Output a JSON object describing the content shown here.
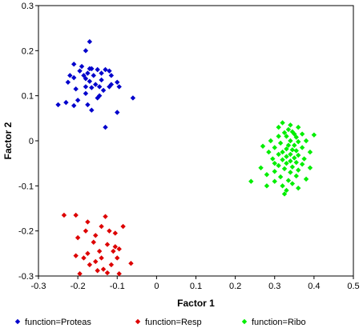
{
  "chart_data": {
    "type": "scatter",
    "xlabel": "Factor 1",
    "ylabel": "Factor 2",
    "xlim": [
      -0.3,
      0.5
    ],
    "ylim": [
      -0.3,
      0.3
    ],
    "x_ticks": [
      -0.3,
      -0.2,
      -0.1,
      0,
      0.1,
      0.2,
      0.3,
      0.4,
      0.5
    ],
    "y_ticks": [
      -0.3,
      -0.2,
      -0.1,
      0,
      0.1,
      0.2,
      0.3
    ],
    "x_tick_labels": [
      "-0.3",
      "-0.2",
      "-0.1",
      "0",
      "0.1",
      "0.2",
      "0.3",
      "0.4",
      "0.5"
    ],
    "y_tick_labels": [
      "-0.3",
      "-0.2",
      "-0.1",
      "0",
      "0.1",
      "0.2",
      "0.3"
    ],
    "grid": false,
    "legend_position": "bottom",
    "marker": "diamond",
    "series": [
      {
        "name": "function=Proteas",
        "color": "#0000cc",
        "points": [
          [
            -0.17,
            0.22
          ],
          [
            -0.18,
            0.2
          ],
          [
            -0.21,
            0.17
          ],
          [
            -0.19,
            0.165
          ],
          [
            -0.17,
            0.16
          ],
          [
            -0.165,
            0.16
          ],
          [
            -0.15,
            0.158
          ],
          [
            -0.13,
            0.158
          ],
          [
            -0.12,
            0.155
          ],
          [
            -0.195,
            0.155
          ],
          [
            -0.175,
            0.15
          ],
          [
            -0.14,
            0.15
          ],
          [
            -0.22,
            0.145
          ],
          [
            -0.185,
            0.145
          ],
          [
            -0.16,
            0.145
          ],
          [
            -0.115,
            0.145
          ],
          [
            -0.21,
            0.14
          ],
          [
            -0.18,
            0.138
          ],
          [
            -0.14,
            0.135
          ],
          [
            -0.17,
            0.132
          ],
          [
            -0.225,
            0.13
          ],
          [
            -0.1,
            0.13
          ],
          [
            -0.155,
            0.125
          ],
          [
            -0.115,
            0.125
          ],
          [
            -0.145,
            0.12
          ],
          [
            -0.18,
            0.12
          ],
          [
            -0.165,
            0.118
          ],
          [
            -0.12,
            0.12
          ],
          [
            -0.095,
            0.12
          ],
          [
            -0.205,
            0.115
          ],
          [
            -0.135,
            0.112
          ],
          [
            -0.18,
            0.105
          ],
          [
            -0.145,
            0.1
          ],
          [
            -0.15,
            0.095
          ],
          [
            -0.2,
            0.09
          ],
          [
            -0.06,
            0.095
          ],
          [
            -0.23,
            0.085
          ],
          [
            -0.175,
            0.08
          ],
          [
            -0.25,
            0.08
          ],
          [
            -0.21,
            0.078
          ],
          [
            -0.165,
            0.068
          ],
          [
            -0.1,
            0.063
          ],
          [
            -0.13,
            0.03
          ]
        ]
      },
      {
        "name": "function=Resp",
        "color": "#dd0000",
        "points": [
          [
            -0.235,
            -0.165
          ],
          [
            -0.205,
            -0.165
          ],
          [
            -0.13,
            -0.168
          ],
          [
            -0.175,
            -0.18
          ],
          [
            -0.14,
            -0.19
          ],
          [
            -0.085,
            -0.19
          ],
          [
            -0.18,
            -0.2
          ],
          [
            -0.12,
            -0.2
          ],
          [
            -0.105,
            -0.205
          ],
          [
            -0.2,
            -0.215
          ],
          [
            -0.155,
            -0.21
          ],
          [
            -0.16,
            -0.225
          ],
          [
            -0.125,
            -0.23
          ],
          [
            -0.105,
            -0.235
          ],
          [
            -0.095,
            -0.24
          ],
          [
            -0.145,
            -0.245
          ],
          [
            -0.175,
            -0.25
          ],
          [
            -0.205,
            -0.255
          ],
          [
            -0.11,
            -0.245
          ],
          [
            -0.185,
            -0.26
          ],
          [
            -0.14,
            -0.26
          ],
          [
            -0.1,
            -0.26
          ],
          [
            -0.155,
            -0.268
          ],
          [
            -0.115,
            -0.275
          ],
          [
            -0.17,
            -0.275
          ],
          [
            -0.135,
            -0.285
          ],
          [
            -0.15,
            -0.288
          ],
          [
            -0.125,
            -0.293
          ],
          [
            -0.065,
            -0.272
          ],
          [
            -0.195,
            -0.295
          ],
          [
            -0.095,
            -0.295
          ]
        ]
      },
      {
        "name": "function=Ribo",
        "color": "#00ee00",
        "points": [
          [
            0.32,
            0.04
          ],
          [
            0.34,
            0.035
          ],
          [
            0.31,
            0.03
          ],
          [
            0.36,
            0.03
          ],
          [
            0.335,
            0.025
          ],
          [
            0.345,
            0.02
          ],
          [
            0.325,
            0.018
          ],
          [
            0.35,
            0.015
          ],
          [
            0.37,
            0.015
          ],
          [
            0.4,
            0.013
          ],
          [
            0.31,
            0.01
          ],
          [
            0.33,
            0.01
          ],
          [
            0.355,
            0.008
          ],
          [
            0.29,
            0.0
          ],
          [
            0.34,
            0.0
          ],
          [
            0.36,
            -0.002
          ],
          [
            0.38,
            0.0
          ],
          [
            0.315,
            -0.005
          ],
          [
            0.335,
            -0.01
          ],
          [
            0.35,
            -0.01
          ],
          [
            0.27,
            -0.012
          ],
          [
            0.37,
            -0.015
          ],
          [
            0.3,
            -0.015
          ],
          [
            0.33,
            -0.018
          ],
          [
            0.345,
            -0.02
          ],
          [
            0.355,
            -0.022
          ],
          [
            0.32,
            -0.025
          ],
          [
            0.285,
            -0.025
          ],
          [
            0.39,
            -0.025
          ],
          [
            0.34,
            -0.03
          ],
          [
            0.31,
            -0.03
          ],
          [
            0.36,
            -0.032
          ],
          [
            0.33,
            -0.035
          ],
          [
            0.35,
            -0.038
          ],
          [
            0.295,
            -0.04
          ],
          [
            0.375,
            -0.04
          ],
          [
            0.32,
            -0.042
          ],
          [
            0.34,
            -0.045
          ],
          [
            0.355,
            -0.048
          ],
          [
            0.3,
            -0.05
          ],
          [
            0.33,
            -0.05
          ],
          [
            0.37,
            -0.052
          ],
          [
            0.31,
            -0.055
          ],
          [
            0.345,
            -0.058
          ],
          [
            0.265,
            -0.06
          ],
          [
            0.39,
            -0.06
          ],
          [
            0.325,
            -0.062
          ],
          [
            0.36,
            -0.065
          ],
          [
            0.3,
            -0.068
          ],
          [
            0.34,
            -0.07
          ],
          [
            0.28,
            -0.075
          ],
          [
            0.355,
            -0.078
          ],
          [
            0.315,
            -0.08
          ],
          [
            0.38,
            -0.085
          ],
          [
            0.335,
            -0.088
          ],
          [
            0.3,
            -0.09
          ],
          [
            0.24,
            -0.09
          ],
          [
            0.345,
            -0.095
          ],
          [
            0.32,
            -0.1
          ],
          [
            0.28,
            -0.1
          ],
          [
            0.36,
            -0.105
          ],
          [
            0.33,
            -0.11
          ],
          [
            0.325,
            -0.118
          ]
        ]
      }
    ]
  }
}
